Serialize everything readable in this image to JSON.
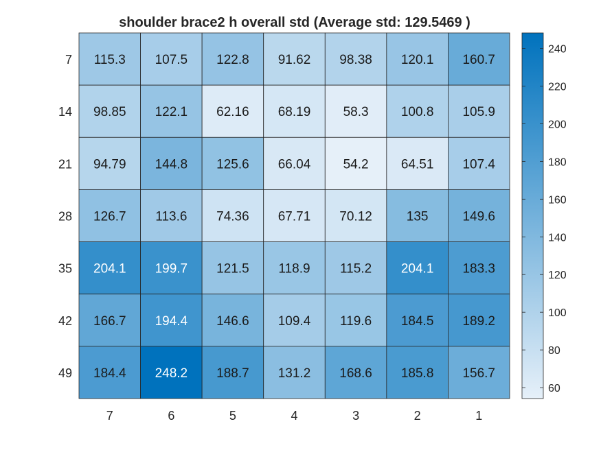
{
  "chart_data": {
    "type": "heatmap",
    "title": "shoulder brace2 h overall std (Average std: 129.5469 )",
    "xlabel": "",
    "ylabel": "",
    "x_categories": [
      "7",
      "6",
      "5",
      "4",
      "3",
      "2",
      "1"
    ],
    "y_categories": [
      "7",
      "14",
      "21",
      "28",
      "35",
      "42",
      "49"
    ],
    "values": [
      [
        115.3,
        107.5,
        122.8,
        91.62,
        98.38,
        120.1,
        160.7
      ],
      [
        98.85,
        122.1,
        62.16,
        68.19,
        58.3,
        100.8,
        105.9
      ],
      [
        94.79,
        144.8,
        125.6,
        66.04,
        54.2,
        64.51,
        107.4
      ],
      [
        126.7,
        113.6,
        74.36,
        67.71,
        70.12,
        135,
        149.6
      ],
      [
        204.1,
        199.7,
        121.5,
        118.9,
        115.2,
        204.1,
        183.3
      ],
      [
        166.7,
        194.4,
        146.6,
        109.4,
        119.6,
        184.5,
        189.2
      ],
      [
        184.4,
        248.2,
        188.7,
        131.2,
        168.6,
        185.8,
        156.7
      ]
    ],
    "labels": [
      [
        "115.3",
        "107.5",
        "122.8",
        "91.62",
        "98.38",
        "120.1",
        "160.7"
      ],
      [
        "98.85",
        "122.1",
        "62.16",
        "68.19",
        "58.3",
        "100.8",
        "105.9"
      ],
      [
        "94.79",
        "144.8",
        "125.6",
        "66.04",
        "54.2",
        "64.51",
        "107.4"
      ],
      [
        "126.7",
        "113.6",
        "74.36",
        "67.71",
        "70.12",
        "135",
        "149.6"
      ],
      [
        "204.1",
        "199.7",
        "121.5",
        "118.9",
        "115.2",
        "204.1",
        "183.3"
      ],
      [
        "166.7",
        "194.4",
        "146.6",
        "109.4",
        "119.6",
        "184.5",
        "189.2"
      ],
      [
        "184.4",
        "248.2",
        "188.7",
        "131.2",
        "168.6",
        "185.8",
        "156.7"
      ]
    ],
    "colorbar": {
      "range": [
        54.2,
        248.2
      ],
      "ticks": [
        "60",
        "80",
        "100",
        "120",
        "140",
        "160",
        "180",
        "200",
        "220",
        "240"
      ],
      "color_low": "#e6f0f9",
      "color_high": "#0072bd"
    },
    "grid": true,
    "legend": "colorbar-right"
  }
}
